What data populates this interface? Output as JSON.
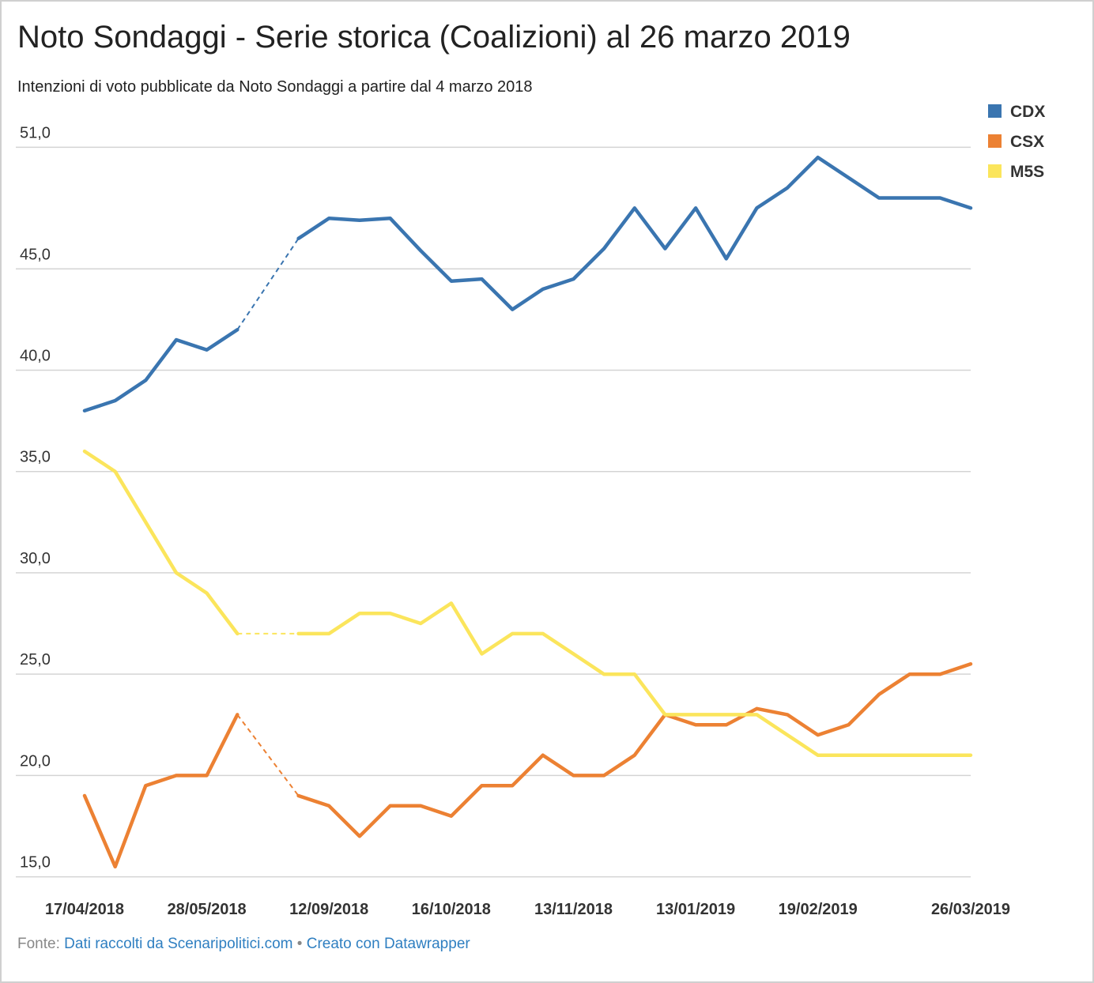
{
  "chart_data": {
    "type": "line",
    "title": "Noto Sondaggi - Serie storica (Coalizioni) al 26 marzo 2019",
    "subtitle": "Intenzioni di voto pubblicate da Noto Sondaggi a partire dal 4 marzo 2018",
    "categories": [
      "17/04/2018",
      null,
      null,
      null,
      "28/05/2018",
      null,
      null,
      null,
      "12/09/2018",
      null,
      null,
      null,
      "16/10/2018",
      null,
      null,
      null,
      "13/11/2018",
      null,
      null,
      null,
      "13/01/2019",
      null,
      null,
      null,
      "19/02/2019",
      null,
      null,
      null,
      null,
      "26/03/2019"
    ],
    "series": [
      {
        "name": "CDX",
        "color": "#3a75b0",
        "values": [
          38.0,
          38.5,
          39.5,
          41.5,
          41.0,
          42.0,
          null,
          46.5,
          47.5,
          47.4,
          47.5,
          45.9,
          44.4,
          44.5,
          43.0,
          44.0,
          44.5,
          46.0,
          48.0,
          46.0,
          48.0,
          45.5,
          48.0,
          49.0,
          50.5,
          49.5,
          48.5,
          48.5,
          48.5,
          48.0
        ]
      },
      {
        "name": "CSX",
        "color": "#ec8133",
        "values": [
          19.0,
          15.5,
          19.5,
          20.0,
          20.0,
          23.0,
          null,
          19.0,
          18.5,
          17.0,
          18.5,
          18.5,
          18.0,
          19.5,
          19.5,
          21.0,
          20.0,
          20.0,
          21.0,
          23.0,
          22.5,
          22.5,
          23.3,
          23.0,
          22.0,
          22.5,
          24.0,
          25.0,
          25.0,
          25.5
        ]
      },
      {
        "name": "M5S",
        "color": "#fbe55c",
        "values": [
          36.0,
          35.0,
          32.5,
          30.0,
          29.0,
          27.0,
          null,
          27.0,
          27.0,
          28.0,
          28.0,
          27.5,
          28.5,
          26.0,
          27.0,
          27.0,
          26.0,
          25.0,
          25.0,
          23.0,
          23.0,
          23.0,
          23.0,
          22.0,
          21.0,
          21.0,
          21.0,
          21.0,
          21.0,
          21.0
        ]
      }
    ],
    "ylim": [
      15,
      51
    ],
    "yticks": [
      {
        "value": 15,
        "label": "15,0"
      },
      {
        "value": 20,
        "label": "20,0"
      },
      {
        "value": 25,
        "label": "25,0"
      },
      {
        "value": 30,
        "label": "30,0"
      },
      {
        "value": 35,
        "label": "35,0"
      },
      {
        "value": 40,
        "label": "40,0"
      },
      {
        "value": 45,
        "label": "45,0"
      },
      {
        "value": 51,
        "label": "51,0"
      }
    ],
    "grid": true,
    "legend": "top-right",
    "source": {
      "prefix": "Fonte:",
      "link1": "Dati raccolti da Scenaripolitici.com",
      "separator": "•",
      "link2": "Creato con Datawrapper"
    }
  }
}
